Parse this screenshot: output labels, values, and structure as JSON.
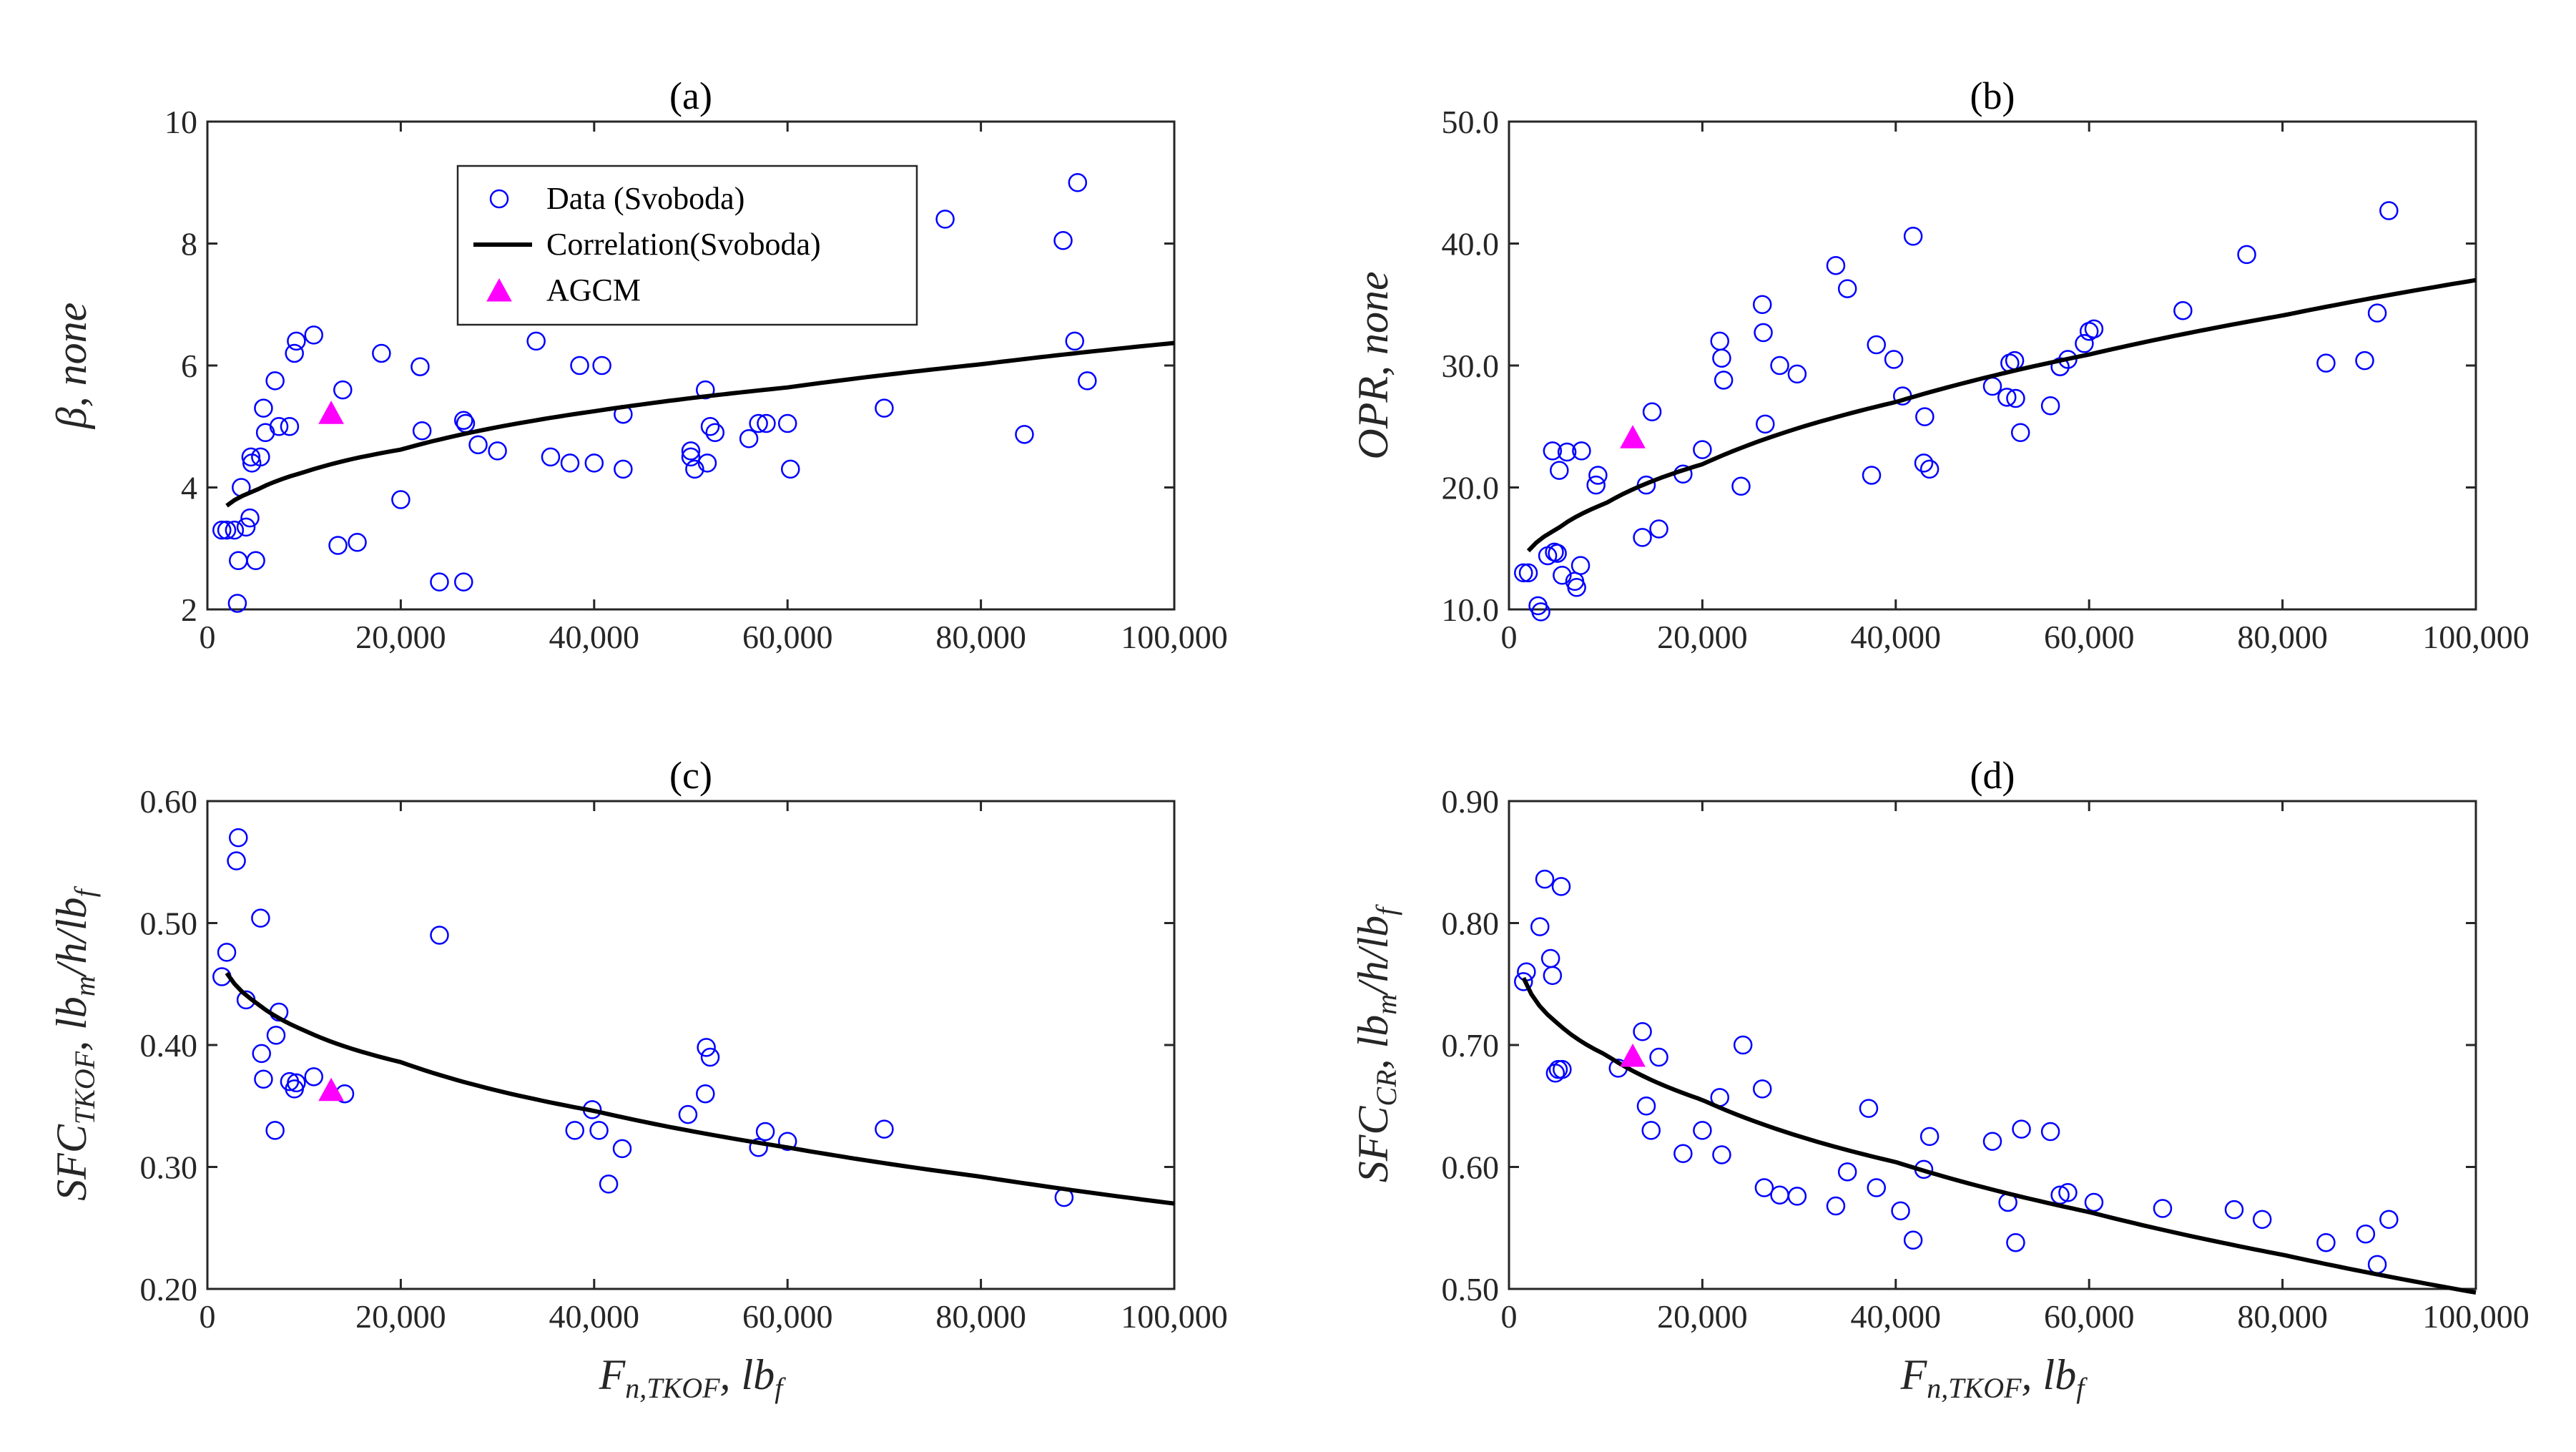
{
  "chart_data": [
    {
      "id": "a",
      "type": "scatter",
      "title": "(a)",
      "xlabel": "",
      "ylabel": {
        "main": "β, none",
        "sub": ""
      },
      "xlim": [
        0,
        100000
      ],
      "ylim": [
        2,
        10
      ],
      "xticks": [
        0,
        20000,
        40000,
        60000,
        80000,
        100000
      ],
      "xtick_labels": [
        "0",
        "20,000",
        "40,000",
        "60,000",
        "80,000",
        "100,000"
      ],
      "yticks": [
        2,
        4,
        6,
        8,
        10
      ],
      "ytick_labels": [
        "2",
        "4",
        "6",
        "8",
        "10"
      ],
      "grid": true,
      "legend": {
        "placement": "top-left",
        "entries": [
          "Data (Svoboda)",
          "Correlation(Svoboda)",
          "AGCM"
        ]
      },
      "series": [
        {
          "name": "Data (Svoboda)",
          "kind": "scatter",
          "marker": "open-circle",
          "x": [
            1500,
            2000,
            2800,
            3100,
            3200,
            3500,
            4000,
            4400,
            4500,
            4600,
            5000,
            5500,
            5800,
            6000,
            7000,
            7400,
            8500,
            9000,
            9200,
            11000,
            13500,
            14000,
            15500,
            18000,
            20000,
            22000,
            22200,
            24000,
            26500,
            26500,
            26700,
            28000,
            30000,
            34000,
            35500,
            37500,
            38500,
            40000,
            40800,
            43000,
            43000,
            50000,
            50000,
            50400,
            51500,
            51700,
            52000,
            52500,
            56000,
            57000,
            57800,
            60000,
            60300,
            70000,
            76300,
            84500,
            88500,
            89700,
            90000,
            91000
          ],
          "y": [
            3.3,
            3.3,
            3.3,
            2.1,
            2.8,
            4.0,
            3.35,
            3.5,
            4.5,
            4.4,
            2.8,
            4.5,
            5.3,
            4.9,
            5.75,
            5.0,
            5.0,
            6.2,
            6.4,
            6.5,
            3.05,
            5.6,
            3.1,
            6.2,
            3.8,
            5.98,
            4.93,
            2.45,
            2.45,
            5.1,
            5.05,
            4.7,
            4.6,
            6.4,
            4.5,
            4.4,
            6.0,
            4.4,
            6.0,
            5.2,
            4.3,
            4.6,
            4.5,
            4.3,
            5.6,
            4.4,
            5.0,
            4.9,
            4.8,
            5.05,
            5.05,
            5.05,
            4.3,
            5.3,
            8.4,
            4.87,
            8.05,
            6.4,
            9.0,
            5.75
          ]
        },
        {
          "name": "Correlation(Svoboda)",
          "kind": "line",
          "x_start": 2000,
          "x_end": 100000,
          "x": [
            2000,
            5000,
            10000,
            20000,
            40000,
            60000,
            80000,
            100000
          ],
          "y": [
            3.7,
            3.95,
            4.25,
            4.62,
            5.25,
            5.64,
            6.02,
            6.37
          ]
        },
        {
          "name": "AGCM",
          "kind": "scatter",
          "marker": "filled-triangle",
          "x": [
            12800
          ],
          "y": [
            5.2
          ]
        }
      ]
    },
    {
      "id": "b",
      "type": "scatter",
      "title": "(b)",
      "xlabel": "",
      "ylabel": {
        "main": "OPR, none",
        "sub": ""
      },
      "xlim": [
        0,
        100000
      ],
      "ylim": [
        10,
        50
      ],
      "xticks": [
        0,
        20000,
        40000,
        60000,
        80000,
        100000
      ],
      "xtick_labels": [
        "0",
        "20,000",
        "40,000",
        "60,000",
        "80,000",
        "100,000"
      ],
      "yticks": [
        10,
        20,
        30,
        40,
        50
      ],
      "ytick_labels": [
        "10.0",
        "20.0",
        "30.0",
        "40.0",
        "50.0"
      ],
      "grid": true,
      "series": [
        {
          "name": "Data (Svoboda)",
          "kind": "scatter",
          "marker": "open-circle",
          "x": [
            1500,
            2000,
            3000,
            3300,
            4000,
            4500,
            4700,
            5000,
            5200,
            5500,
            6000,
            6800,
            7000,
            7400,
            7500,
            9000,
            9200,
            13800,
            14200,
            14800,
            15500,
            18000,
            20000,
            21800,
            22000,
            22200,
            24000,
            26200,
            26300,
            26500,
            28000,
            29800,
            33800,
            35000,
            37500,
            38000,
            39800,
            40700,
            41800,
            42900,
            43000,
            43500,
            50000,
            51500,
            51800,
            52300,
            52400,
            52900,
            56000,
            57000,
            57800,
            59500,
            60000,
            60500,
            69700,
            76300,
            84500,
            88500,
            89800,
            91000
          ],
          "y": [
            13.0,
            13.0,
            10.3,
            9.8,
            14.4,
            23.0,
            14.7,
            14.6,
            21.4,
            12.8,
            22.9,
            12.3,
            11.8,
            13.6,
            23.0,
            20.2,
            21.0,
            15.9,
            20.2,
            26.2,
            16.6,
            21.1,
            23.1,
            32.0,
            30.6,
            28.8,
            20.1,
            35.0,
            32.7,
            25.2,
            30.0,
            29.3,
            38.2,
            36.3,
            21.0,
            31.7,
            30.5,
            27.5,
            40.6,
            22.0,
            25.8,
            21.5,
            28.3,
            27.4,
            30.2,
            30.4,
            27.3,
            24.5,
            26.7,
            29.9,
            30.5,
            31.8,
            32.8,
            33.0,
            34.5,
            39.1,
            30.2,
            30.4,
            34.3,
            42.7
          ]
        },
        {
          "name": "Correlation(Svoboda)",
          "kind": "line",
          "x_start": 2000,
          "x_end": 100000,
          "x": [
            2000,
            5000,
            10000,
            20000,
            40000,
            60000,
            80000,
            100000
          ],
          "y": [
            14.8,
            16.6,
            18.7,
            21.9,
            27.0,
            30.9,
            34.1,
            37.0
          ]
        },
        {
          "name": "AGCM",
          "kind": "scatter",
          "marker": "filled-triangle",
          "x": [
            12800
          ],
          "y": [
            24.0
          ]
        }
      ]
    },
    {
      "id": "c",
      "type": "scatter",
      "title": "(c)",
      "xlabel": {
        "main": "F",
        "sub": "n,TKOF",
        "tail": ", lb",
        "tail_sub": "f"
      },
      "ylabel": {
        "main": "SFC",
        "sub": "TKOF",
        "tail": ", lb",
        "tail_sub": "m",
        "tail2": "/h/lb",
        "tail2_sub": "f"
      },
      "xlim": [
        0,
        100000
      ],
      "ylim": [
        0.2,
        0.6
      ],
      "xticks": [
        0,
        20000,
        40000,
        60000,
        80000,
        100000
      ],
      "xtick_labels": [
        "0",
        "20,000",
        "40,000",
        "60,000",
        "80,000",
        "100,000"
      ],
      "yticks": [
        0.2,
        0.3,
        0.4,
        0.5,
        0.6
      ],
      "ytick_labels": [
        "0.20",
        "0.30",
        "0.40",
        "0.50",
        "0.60"
      ],
      "grid": true,
      "series": [
        {
          "name": "Data (Svoboda)",
          "kind": "scatter",
          "marker": "open-circle",
          "x": [
            1500,
            2000,
            3000,
            3200,
            4000,
            5500,
            5600,
            5800,
            7000,
            7100,
            7400,
            8500,
            9000,
            9200,
            11000,
            14200,
            24000,
            38000,
            39800,
            40500,
            41500,
            42900,
            49700,
            51500,
            51600,
            52000,
            57000,
            57700,
            60000,
            70000,
            88600
          ],
          "y": [
            0.456,
            0.476,
            0.551,
            0.57,
            0.437,
            0.504,
            0.393,
            0.372,
            0.33,
            0.408,
            0.427,
            0.37,
            0.364,
            0.369,
            0.374,
            0.36,
            0.49,
            0.33,
            0.347,
            0.33,
            0.286,
            0.315,
            0.343,
            0.36,
            0.398,
            0.39,
            0.316,
            0.329,
            0.321,
            0.331,
            0.275
          ]
        },
        {
          "name": "Correlation(Svoboda)",
          "kind": "line",
          "x_start": 2000,
          "x_end": 100000,
          "x": [
            2000,
            5000,
            10000,
            20000,
            40000,
            60000,
            80000,
            100000
          ],
          "y": [
            0.459,
            0.435,
            0.412,
            0.386,
            0.346,
            0.316,
            0.292,
            0.27
          ]
        },
        {
          "name": "AGCM",
          "kind": "scatter",
          "marker": "filled-triangle",
          "x": [
            12800
          ],
          "y": [
            0.362
          ]
        }
      ]
    },
    {
      "id": "d",
      "type": "scatter",
      "title": "(d)",
      "xlabel": {
        "main": "F",
        "sub": "n,TKOF",
        "tail": ", lb",
        "tail_sub": "f"
      },
      "ylabel": {
        "main": "SFC",
        "sub": "CR",
        "tail": ", lb",
        "tail_sub": "m",
        "tail2": "/h/lb",
        "tail2_sub": "f"
      },
      "xlim": [
        0,
        100000
      ],
      "ylim": [
        0.5,
        0.9
      ],
      "xticks": [
        0,
        20000,
        40000,
        60000,
        80000,
        100000
      ],
      "xtick_labels": [
        "0",
        "20,000",
        "40,000",
        "60,000",
        "80,000",
        "100,000"
      ],
      "yticks": [
        0.5,
        0.6,
        0.7,
        0.8,
        0.9
      ],
      "ytick_labels": [
        "0.50",
        "0.60",
        "0.70",
        "0.80",
        "0.90"
      ],
      "grid": true,
      "series": [
        {
          "name": "Data (Svoboda)",
          "kind": "scatter",
          "marker": "open-circle",
          "x": [
            1500,
            1800,
            3200,
            3700,
            4300,
            4500,
            4800,
            5100,
            5400,
            5500,
            11300,
            13800,
            14200,
            14700,
            15500,
            18000,
            20000,
            21800,
            22000,
            24200,
            26200,
            26400,
            28000,
            29800,
            33800,
            35000,
            37200,
            38000,
            40500,
            41800,
            42900,
            43500,
            50000,
            51600,
            52400,
            53000,
            56000,
            57000,
            57800,
            60500,
            67600,
            75000,
            77900,
            84500,
            88600,
            89800,
            91000
          ],
          "y": [
            0.752,
            0.76,
            0.797,
            0.836,
            0.771,
            0.757,
            0.677,
            0.68,
            0.83,
            0.68,
            0.681,
            0.711,
            0.65,
            0.63,
            0.69,
            0.611,
            0.63,
            0.657,
            0.61,
            0.7,
            0.664,
            0.583,
            0.577,
            0.576,
            0.568,
            0.596,
            0.648,
            0.583,
            0.564,
            0.54,
            0.598,
            0.625,
            0.621,
            0.571,
            0.538,
            0.631,
            0.629,
            0.577,
            0.579,
            0.571,
            0.566,
            0.565,
            0.557,
            0.538,
            0.545,
            0.52,
            0.557
          ]
        },
        {
          "name": "Correlation(Svoboda)",
          "kind": "line",
          "x_start": 1500,
          "x_end": 100000,
          "x": [
            1500,
            5000,
            10000,
            20000,
            40000,
            60000,
            80000,
            100000
          ],
          "y": [
            0.755,
            0.718,
            0.692,
            0.655,
            0.604,
            0.563,
            0.528,
            0.497
          ]
        },
        {
          "name": "AGCM",
          "kind": "scatter",
          "marker": "filled-triangle",
          "x": [
            12800
          ],
          "y": [
            0.69
          ]
        }
      ]
    }
  ]
}
